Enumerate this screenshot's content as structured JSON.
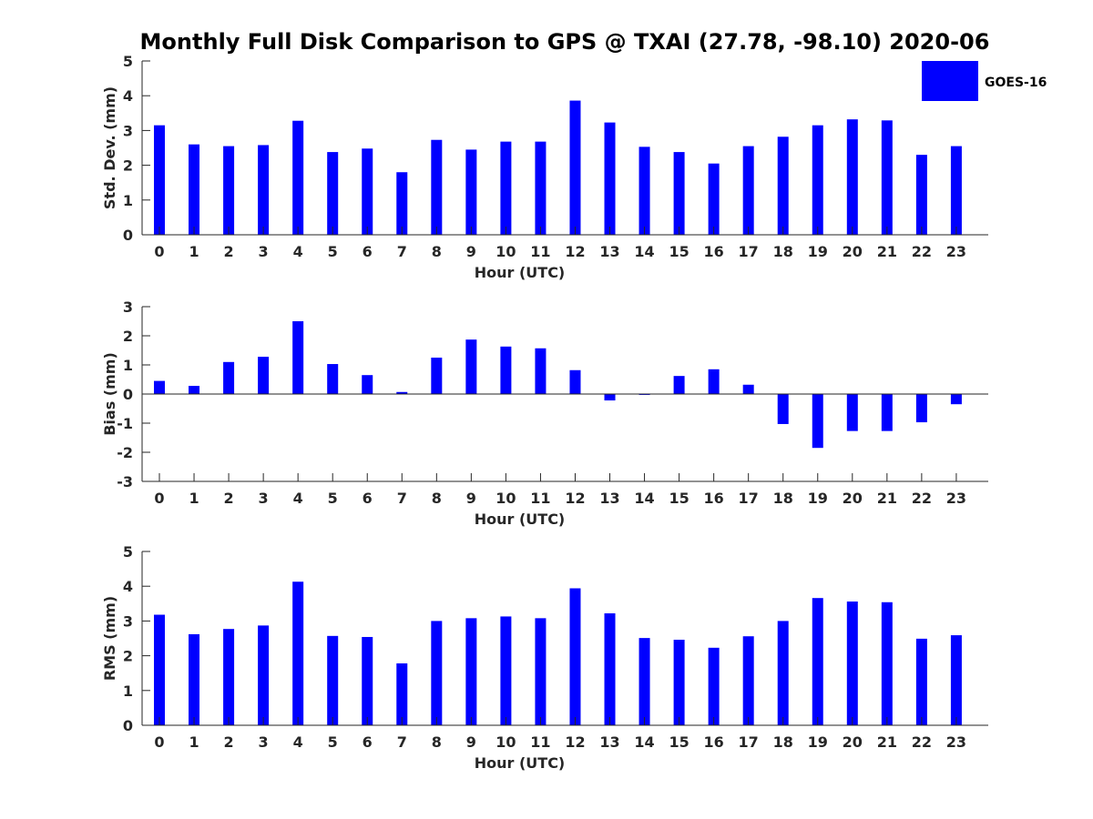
{
  "title": "Monthly Full Disk Comparison to GPS @ TXAI (27.78, -98.10) 2020-06",
  "legend": {
    "label": "GOES-16",
    "color": "#0000ff"
  },
  "chart_data": [
    {
      "type": "bar",
      "name": "std-dev",
      "ylabel": "Std. Dev. (mm)",
      "xlabel": "Hour (UTC)",
      "ylim": [
        0,
        5
      ],
      "yticks": [
        "0",
        "1",
        "2",
        "3",
        "4",
        "5"
      ],
      "categories": [
        "0",
        "1",
        "2",
        "3",
        "4",
        "5",
        "6",
        "7",
        "8",
        "9",
        "10",
        "11",
        "12",
        "13",
        "14",
        "15",
        "16",
        "17",
        "18",
        "19",
        "20",
        "21",
        "22",
        "23"
      ],
      "series": [
        {
          "name": "GOES-16",
          "color": "#0000ff",
          "values": [
            3.15,
            2.6,
            2.55,
            2.58,
            3.28,
            2.38,
            2.48,
            1.8,
            2.73,
            2.45,
            2.68,
            2.68,
            3.86,
            3.23,
            2.53,
            2.38,
            2.05,
            2.55,
            2.82,
            3.15,
            3.32,
            3.29,
            2.3,
            2.55
          ]
        }
      ]
    },
    {
      "type": "bar",
      "name": "bias",
      "ylabel": "Bias (mm)",
      "xlabel": "Hour (UTC)",
      "ylim": [
        -3,
        3
      ],
      "yticks": [
        "-3",
        "-2",
        "-1",
        "0",
        "1",
        "2",
        "3"
      ],
      "categories": [
        "0",
        "1",
        "2",
        "3",
        "4",
        "5",
        "6",
        "7",
        "8",
        "9",
        "10",
        "11",
        "12",
        "13",
        "14",
        "15",
        "16",
        "17",
        "18",
        "19",
        "20",
        "21",
        "22",
        "23"
      ],
      "series": [
        {
          "name": "GOES-16",
          "color": "#0000ff",
          "values": [
            0.45,
            0.28,
            1.1,
            1.28,
            2.5,
            1.03,
            0.65,
            0.07,
            1.25,
            1.87,
            1.63,
            1.57,
            0.82,
            -0.22,
            -0.03,
            0.62,
            0.85,
            0.32,
            -1.03,
            -1.85,
            -1.27,
            -1.27,
            -0.97,
            -0.35
          ]
        }
      ]
    },
    {
      "type": "bar",
      "name": "rms",
      "ylabel": "RMS (mm)",
      "xlabel": "Hour (UTC)",
      "ylim": [
        0,
        5
      ],
      "yticks": [
        "0",
        "1",
        "2",
        "3",
        "4",
        "5"
      ],
      "categories": [
        "0",
        "1",
        "2",
        "3",
        "4",
        "5",
        "6",
        "7",
        "8",
        "9",
        "10",
        "11",
        "12",
        "13",
        "14",
        "15",
        "16",
        "17",
        "18",
        "19",
        "20",
        "21",
        "22",
        "23"
      ],
      "series": [
        {
          "name": "GOES-16",
          "color": "#0000ff",
          "values": [
            3.18,
            2.62,
            2.77,
            2.87,
            4.13,
            2.57,
            2.54,
            1.78,
            3.0,
            3.08,
            3.13,
            3.08,
            3.94,
            3.22,
            2.51,
            2.46,
            2.23,
            2.56,
            3.0,
            3.66,
            3.56,
            3.54,
            2.49,
            2.59
          ]
        }
      ]
    }
  ]
}
